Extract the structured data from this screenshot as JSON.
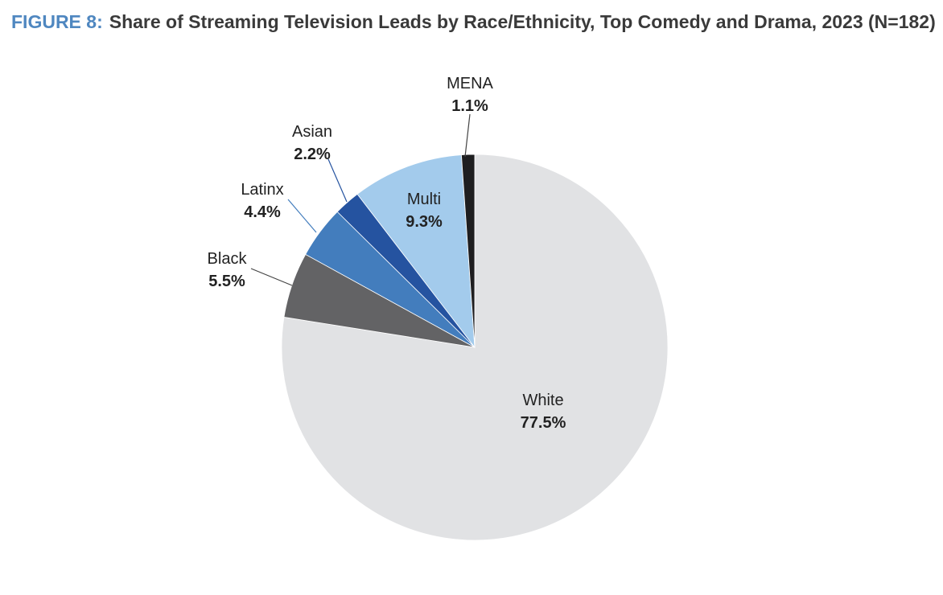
{
  "figure_label": "FIGURE 8:",
  "figure_title": "Share of Streaming Television Leads by Race/Ethnicity, Top Comedy and Drama, 2023 (N=182)",
  "chart_data": {
    "type": "pie",
    "title": "Share of Streaming Television Leads by Race/Ethnicity, Top Comedy and Drama, 2023 (N=182)",
    "slices": [
      {
        "label": "White",
        "value": 77.5,
        "display": "77.5%",
        "color": "#e1e2e4"
      },
      {
        "label": "Black",
        "value": 5.5,
        "display": "5.5%",
        "color": "#636365"
      },
      {
        "label": "Latinx",
        "value": 4.4,
        "display": "4.4%",
        "color": "#437dbd"
      },
      {
        "label": "Asian",
        "value": 2.2,
        "display": "2.2%",
        "color": "#2553a0"
      },
      {
        "label": "Multi",
        "value": 9.3,
        "display": "9.3%",
        "color": "#a3cbec"
      },
      {
        "label": "MENA",
        "value": 1.1,
        "display": "1.1%",
        "color": "#1e1e20"
      }
    ],
    "start_angle": "12 o'clock",
    "direction": "clockwise"
  }
}
